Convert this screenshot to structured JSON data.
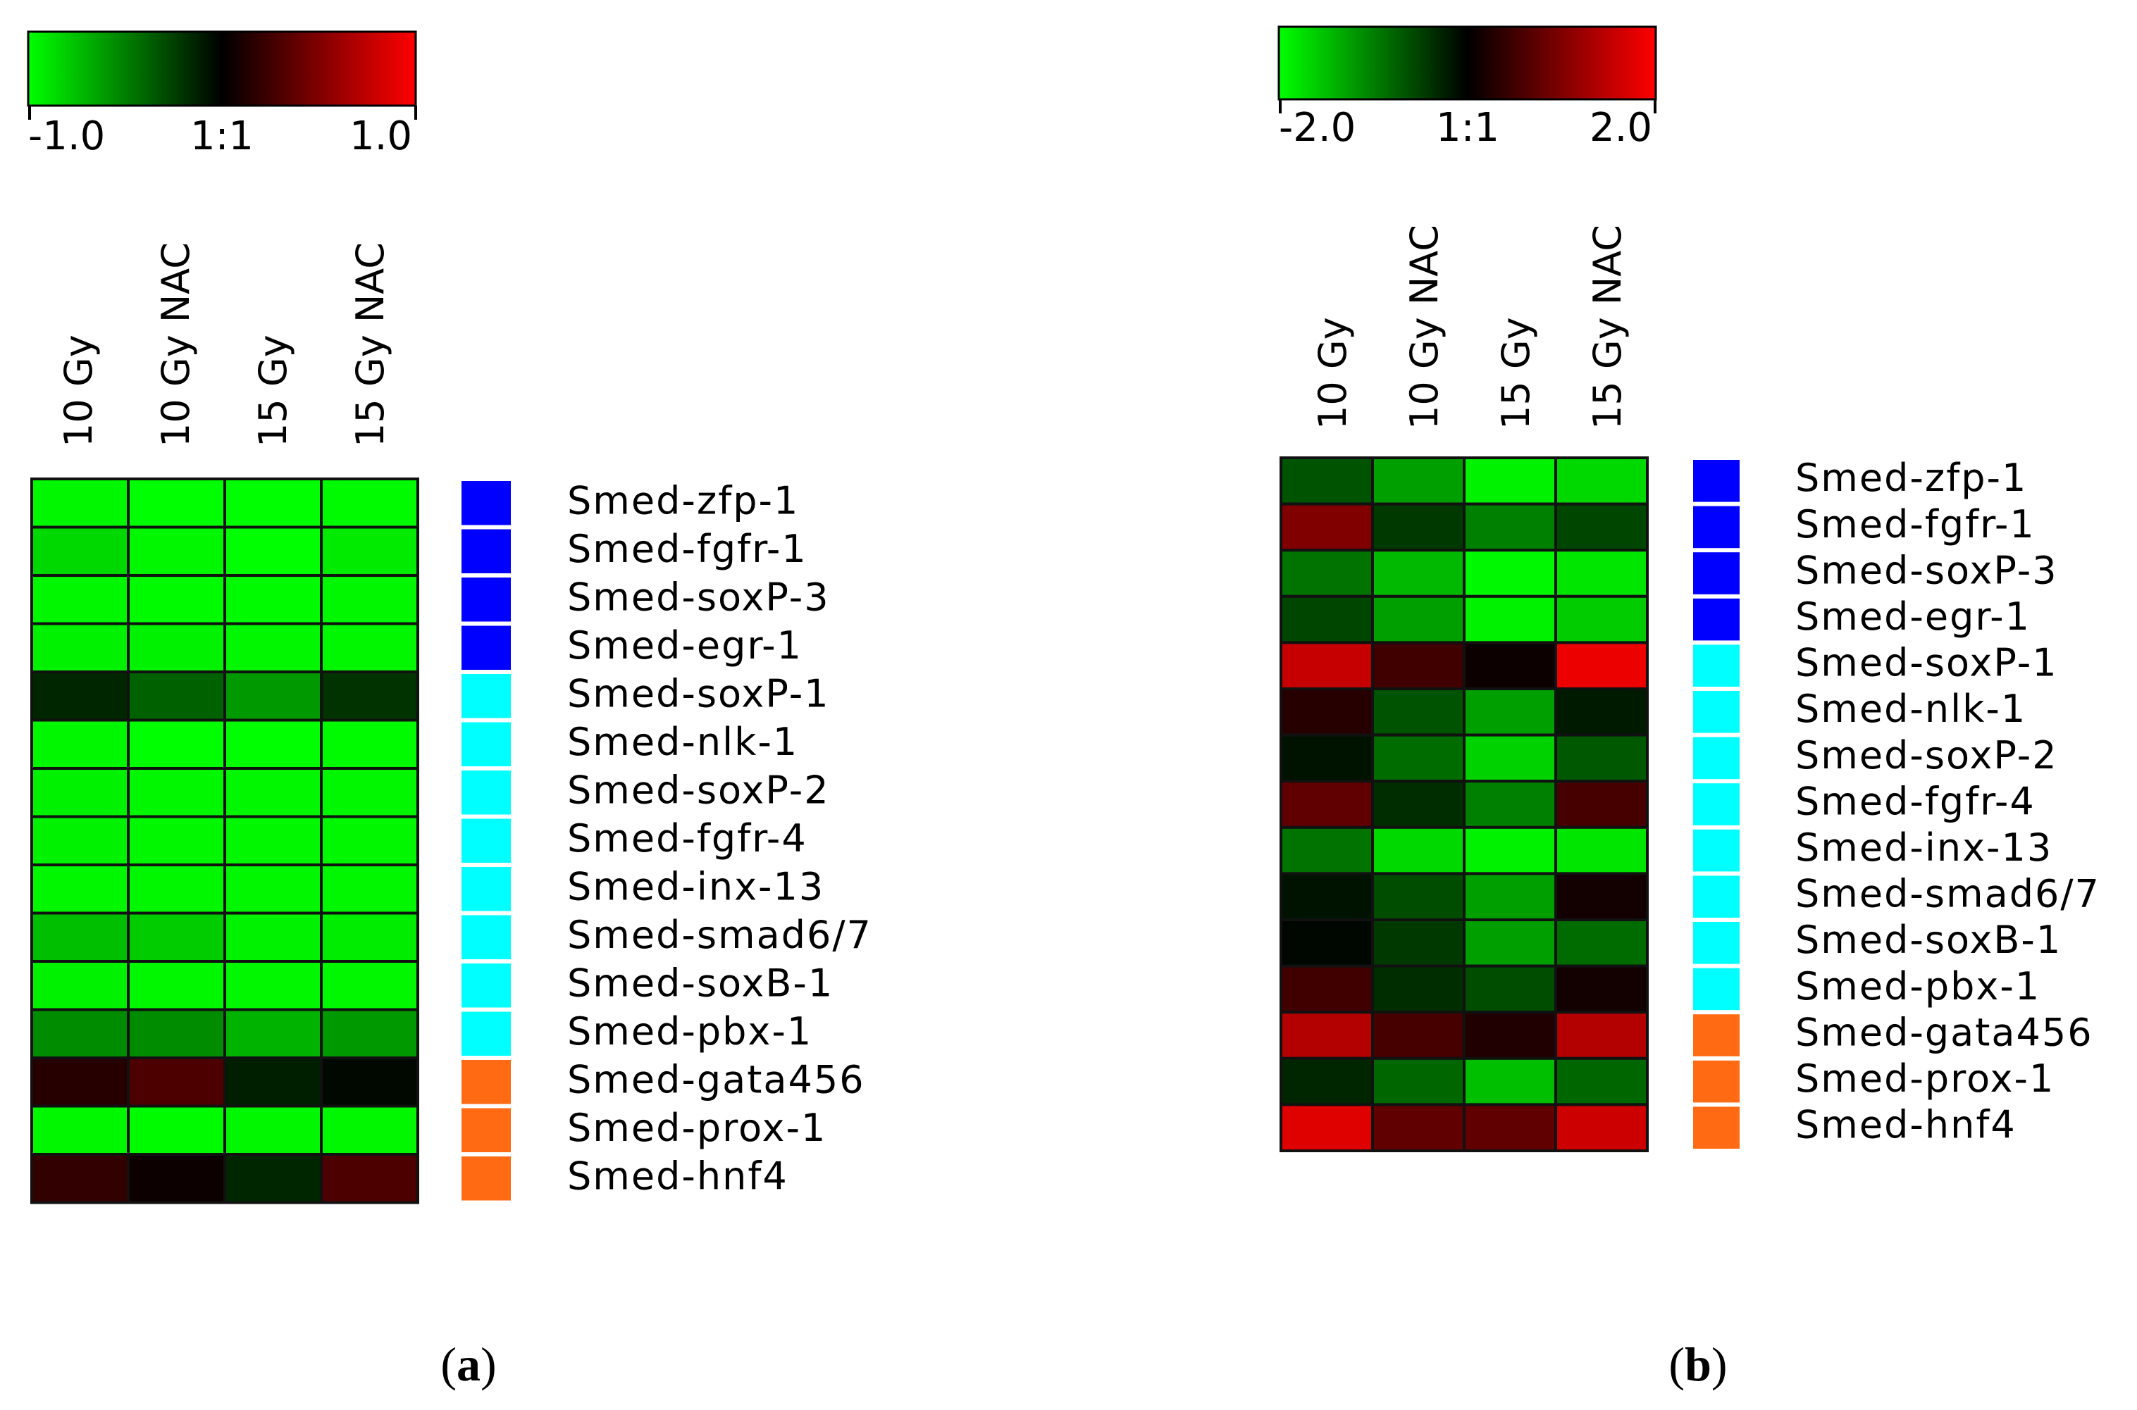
{
  "colors": {
    "low": "#00ff00",
    "mid": "#000000",
    "high": "#ff0000",
    "group_1": "#0000ff",
    "group_2": "#00ffff",
    "group_3": "#ff6a13",
    "grid": "#111111"
  },
  "chart_data": [
    {
      "type": "heatmap",
      "panel_label": "a",
      "scale": {
        "min_label": "-1.0",
        "mid_label": "1:1",
        "max_label": "1.0",
        "min": -1.0,
        "max": 1.0
      },
      "columns": [
        "10 Gy",
        "10 Gy NAC",
        "15 Gy",
        "15 Gy NAC"
      ],
      "rows": [
        "Smed-zfp-1",
        "Smed-fgfr-1",
        "Smed-soxP-3",
        "Smed-egr-1",
        "Smed-soxP-1",
        "Smed-nlk-1",
        "Smed-soxP-2",
        "Smed-fgfr-4",
        "Smed-inx-13",
        "Smed-smad6/7",
        "Smed-soxB-1",
        "Smed-pbx-1",
        "Smed-gata456",
        "Smed-prox-1",
        "Smed-hnf4"
      ],
      "row_groups": [
        1,
        1,
        1,
        1,
        2,
        2,
        2,
        2,
        2,
        2,
        2,
        2,
        3,
        3,
        3
      ],
      "values": [
        [
          -0.97,
          -1.0,
          -1.0,
          -0.98
        ],
        [
          -0.85,
          -0.97,
          -1.0,
          -0.92
        ],
        [
          -0.97,
          -0.98,
          -0.98,
          -0.97
        ],
        [
          -0.95,
          -0.95,
          -0.97,
          -0.97
        ],
        [
          -0.15,
          -0.38,
          -0.6,
          -0.2
        ],
        [
          -0.97,
          -1.0,
          -1.0,
          -0.98
        ],
        [
          -0.95,
          -0.97,
          -0.97,
          -0.97
        ],
        [
          -0.95,
          -0.97,
          -0.97,
          -0.97
        ],
        [
          -0.97,
          -0.97,
          -0.97,
          -0.97
        ],
        [
          -0.75,
          -0.8,
          -0.95,
          -0.93
        ],
        [
          -0.95,
          -0.97,
          -0.97,
          -0.97
        ],
        [
          -0.55,
          -0.55,
          -0.7,
          -0.6
        ],
        [
          0.15,
          0.3,
          -0.12,
          -0.03
        ],
        [
          -0.97,
          -0.98,
          -0.97,
          -0.97
        ],
        [
          0.2,
          0.05,
          -0.15,
          0.3
        ]
      ]
    },
    {
      "type": "heatmap",
      "panel_label": "b",
      "scale": {
        "min_label": "-2.0",
        "mid_label": "1:1",
        "max_label": "2.0",
        "min": -2.0,
        "max": 2.0
      },
      "columns": [
        "10 Gy",
        "10 Gy NAC",
        "15 Gy",
        "15 Gy NAC"
      ],
      "rows": [
        "Smed-zfp-1",
        "Smed-fgfr-1",
        "Smed-soxP-3",
        "Smed-egr-1",
        "Smed-soxP-1",
        "Smed-nlk-1",
        "Smed-soxP-2",
        "Smed-fgfr-4",
        "Smed-inx-13",
        "Smed-smad6/7",
        "Smed-soxB-1",
        "Smed-pbx-1",
        "Smed-gata456",
        "Smed-prox-1",
        "Smed-hnf4"
      ],
      "row_groups": [
        1,
        1,
        1,
        1,
        2,
        2,
        2,
        2,
        2,
        2,
        2,
        2,
        3,
        3,
        3
      ],
      "values": [
        [
          -0.65,
          -1.25,
          -1.9,
          -1.7
        ],
        [
          1.0,
          -0.45,
          -1.0,
          -0.55
        ],
        [
          -0.9,
          -1.45,
          -1.95,
          -1.8
        ],
        [
          -0.55,
          -1.25,
          -1.9,
          -1.6
        ],
        [
          1.55,
          0.5,
          0.1,
          1.85
        ],
        [
          0.3,
          -0.65,
          -1.25,
          -0.2
        ],
        [
          -0.15,
          -0.85,
          -1.65,
          -0.7
        ],
        [
          0.75,
          -0.35,
          -1.0,
          0.55
        ],
        [
          -0.9,
          -1.7,
          -1.9,
          -1.8
        ],
        [
          -0.15,
          -0.6,
          -1.25,
          0.15
        ],
        [
          -0.05,
          -0.45,
          -1.25,
          -0.85
        ],
        [
          0.5,
          -0.35,
          -0.6,
          0.15
        ],
        [
          1.4,
          0.55,
          0.25,
          1.4
        ],
        [
          -0.3,
          -0.8,
          -1.5,
          -0.8
        ],
        [
          1.75,
          0.75,
          0.75,
          1.6
        ]
      ]
    }
  ]
}
